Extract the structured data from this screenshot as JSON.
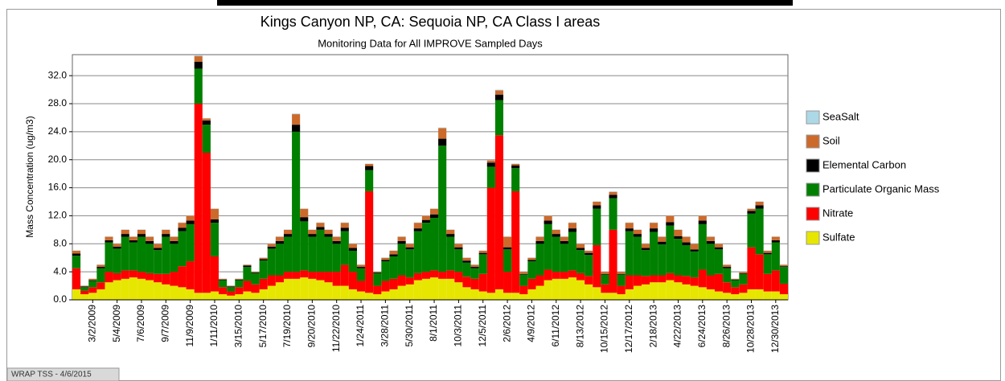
{
  "chart_data": {
    "type": "stacked_bar",
    "title": "Kings Canyon NP, CA: Sequoia NP, CA Class I areas",
    "subtitle": "Monitoring Data for All IMPROVE Sampled Days",
    "y_label": "Mass Concentration (ug/m3)",
    "footer": "WRAP TSS - 4/6/2015",
    "ylim": [
      0,
      35
    ],
    "yticks": [
      {
        "value": 0,
        "label": "0.0"
      },
      {
        "value": 4,
        "label": "4.0"
      },
      {
        "value": 8,
        "label": "8.0"
      },
      {
        "value": 12,
        "label": "12.0"
      },
      {
        "value": 16,
        "label": "16.0"
      },
      {
        "value": 20,
        "label": "20.0"
      },
      {
        "value": 24,
        "label": "24.0"
      },
      {
        "value": 28,
        "label": "28.0"
      },
      {
        "value": 32,
        "label": "32.0"
      }
    ],
    "grid": true,
    "categories": [
      null,
      null,
      "3/2/2009",
      null,
      null,
      "5/4/2009",
      null,
      null,
      "7/6/2009",
      null,
      null,
      "9/7/2009",
      null,
      null,
      "11/9/2009",
      null,
      null,
      "1/11/2010",
      null,
      null,
      "3/15/2010",
      null,
      null,
      "5/17/2010",
      null,
      null,
      "7/19/2010",
      null,
      null,
      "9/20/2010",
      null,
      null,
      "11/22/2010",
      null,
      null,
      "1/24/2011",
      null,
      null,
      "3/28/2011",
      null,
      null,
      "5/30/2011",
      null,
      null,
      "8/1/2011",
      null,
      null,
      "10/3/2011",
      null,
      null,
      "12/5/2011",
      null,
      null,
      "2/6/2012",
      null,
      null,
      "4/9/2012",
      null,
      null,
      "6/11/2012",
      null,
      null,
      "8/13/2012",
      null,
      null,
      "10/15/2012",
      null,
      null,
      "12/17/2012",
      null,
      null,
      "2/18/2013",
      null,
      null,
      "4/22/2013",
      null,
      null,
      "6/24/2013",
      null,
      null,
      "8/26/2013",
      null,
      null,
      "10/28/2013",
      null,
      null,
      "12/30/2013",
      null
    ],
    "series": [
      {
        "name": "Sulfate",
        "color": "#e6e600",
        "values": [
          1.5,
          0.8,
          1.0,
          1.5,
          2.5,
          2.8,
          3.0,
          3.2,
          3.0,
          2.8,
          2.5,
          2.2,
          2.0,
          1.8,
          1.5,
          1.0,
          1.0,
          1.2,
          0.8,
          0.6,
          0.8,
          1.2,
          1.0,
          1.5,
          2.0,
          2.5,
          3.0,
          3.0,
          3.2,
          3.0,
          2.8,
          2.5,
          2.0,
          2.0,
          1.5,
          1.2,
          1.0,
          0.8,
          1.2,
          1.5,
          2.0,
          2.2,
          2.8,
          3.0,
          3.2,
          3.0,
          3.0,
          2.5,
          1.8,
          1.5,
          1.2,
          1.0,
          1.5,
          1.0,
          1.0,
          0.8,
          1.5,
          2.0,
          2.8,
          3.0,
          3.0,
          3.2,
          2.8,
          2.2,
          1.8,
          1.0,
          1.0,
          0.8,
          1.5,
          2.0,
          2.2,
          2.5,
          2.5,
          2.8,
          2.5,
          2.2,
          2.0,
          1.8,
          1.5,
          1.2,
          1.0,
          0.8,
          1.0,
          1.5,
          1.5,
          1.2,
          1.2,
          0.8
        ]
      },
      {
        "name": "Nitrate",
        "color": "#ff0000",
        "values": [
          3.0,
          0.5,
          0.8,
          1.0,
          1.5,
          1.0,
          1.2,
          1.0,
          1.0,
          1.0,
          1.2,
          1.5,
          2.0,
          3.0,
          4.0,
          27.0,
          20.0,
          5.0,
          1.0,
          0.6,
          1.0,
          1.5,
          1.2,
          1.5,
          1.5,
          1.0,
          1.0,
          1.0,
          1.0,
          1.0,
          1.2,
          1.5,
          2.0,
          3.0,
          2.5,
          1.5,
          14.5,
          1.2,
          1.5,
          1.5,
          1.5,
          1.0,
          1.0,
          1.0,
          1.0,
          1.0,
          1.2,
          1.5,
          1.5,
          1.5,
          2.5,
          15.0,
          22.0,
          3.0,
          14.5,
          1.2,
          1.5,
          1.5,
          1.5,
          1.0,
          1.0,
          1.0,
          1.0,
          1.2,
          6.0,
          1.2,
          9.0,
          1.2,
          2.0,
          1.5,
          1.2,
          1.0,
          1.0,
          1.0,
          1.0,
          1.2,
          1.2,
          2.5,
          2.0,
          2.5,
          1.5,
          1.0,
          1.2,
          6.0,
          5.0,
          2.5,
          3.0,
          1.5
        ]
      },
      {
        "name": "Particulate Organic Mass",
        "color": "#008000",
        "values": [
          1.8,
          0.5,
          0.9,
          2.0,
          4.2,
          3.5,
          4.8,
          4.0,
          5.0,
          4.2,
          3.4,
          5.3,
          4.0,
          5.0,
          5.3,
          5.0,
          4.0,
          4.8,
          1.0,
          0.6,
          1.0,
          2.0,
          1.6,
          2.6,
          3.8,
          4.5,
          5.0,
          20.0,
          7.0,
          5.0,
          6.0,
          5.0,
          4.0,
          4.8,
          3.0,
          1.8,
          3.0,
          1.8,
          2.8,
          3.2,
          4.5,
          4.0,
          6.0,
          7.0,
          7.5,
          18.0,
          4.8,
          3.2,
          2.0,
          1.5,
          2.8,
          3.0,
          5.0,
          3.2,
          3.3,
          1.6,
          2.5,
          4.5,
          6.5,
          5.0,
          4.0,
          5.5,
          3.3,
          3.0,
          5.2,
          1.4,
          4.5,
          1.6,
          6.3,
          5.5,
          3.7,
          6.2,
          4.4,
          6.8,
          5.2,
          4.4,
          3.7,
          6.5,
          4.5,
          3.5,
          2.0,
          1.0,
          1.5,
          4.8,
          6.5,
          2.8,
          4.0,
          2.4
        ]
      },
      {
        "name": "Elemental Carbon",
        "color": "#000000",
        "values": [
          0.3,
          0.1,
          0.1,
          0.2,
          0.3,
          0.3,
          0.4,
          0.3,
          0.4,
          0.4,
          0.3,
          0.4,
          0.4,
          0.5,
          0.5,
          1.0,
          0.6,
          0.5,
          0.1,
          0.1,
          0.1,
          0.2,
          0.1,
          0.2,
          0.3,
          0.4,
          0.4,
          1.0,
          0.6,
          0.4,
          0.4,
          0.4,
          0.4,
          0.5,
          0.4,
          0.2,
          0.6,
          0.1,
          0.2,
          0.3,
          0.4,
          0.3,
          0.4,
          0.4,
          0.5,
          1.0,
          0.4,
          0.3,
          0.3,
          0.2,
          0.2,
          0.6,
          0.8,
          0.3,
          0.4,
          0.1,
          0.2,
          0.4,
          0.5,
          0.4,
          0.4,
          0.5,
          0.3,
          0.3,
          0.5,
          0.1,
          0.5,
          0.1,
          0.4,
          0.4,
          0.3,
          0.5,
          0.4,
          0.5,
          0.4,
          0.4,
          0.3,
          0.5,
          0.4,
          0.3,
          0.2,
          0.1,
          0.1,
          0.4,
          0.5,
          0.2,
          0.3,
          0.1
        ]
      },
      {
        "name": "Soil",
        "color": "#cc6a2c",
        "values": [
          0.4,
          0.1,
          0.2,
          0.3,
          0.5,
          0.4,
          0.6,
          0.5,
          0.6,
          0.6,
          0.6,
          0.6,
          0.6,
          0.7,
          0.7,
          0.8,
          0.3,
          1.5,
          0.1,
          0.1,
          0.1,
          0.1,
          0.1,
          0.2,
          0.4,
          0.6,
          0.6,
          1.5,
          1.2,
          0.6,
          0.6,
          0.6,
          0.6,
          0.7,
          0.6,
          0.3,
          0.3,
          0.1,
          0.3,
          0.5,
          0.6,
          0.5,
          0.8,
          0.6,
          0.8,
          1.5,
          0.6,
          0.5,
          0.4,
          0.3,
          0.3,
          0.3,
          0.6,
          1.5,
          0.2,
          0.3,
          0.3,
          0.6,
          0.7,
          0.6,
          0.6,
          0.8,
          0.6,
          0.3,
          0.5,
          0.3,
          0.4,
          0.3,
          0.8,
          0.6,
          0.6,
          0.8,
          0.7,
          0.9,
          0.9,
          0.8,
          0.8,
          0.7,
          0.6,
          0.5,
          0.3,
          0.1,
          0.2,
          0.3,
          0.5,
          0.3,
          0.5,
          0.2
        ]
      },
      {
        "name": "SeaSalt",
        "color": "#add8e6",
        "values": [
          0.05,
          0.05,
          0.05,
          0.05,
          0.05,
          0.05,
          0.05,
          0.05,
          0.05,
          0.05,
          0.05,
          0.05,
          0.05,
          0.05,
          0.05,
          0.1,
          0.05,
          0.05,
          0.05,
          0.05,
          0.05,
          0.05,
          0.05,
          0.05,
          0.05,
          0.05,
          0.05,
          0.1,
          0.05,
          0.05,
          0.05,
          0.05,
          0.05,
          0.05,
          0.05,
          0.05,
          0.05,
          0.05,
          0.05,
          0.05,
          0.05,
          0.05,
          0.05,
          0.05,
          0.05,
          0.1,
          0.05,
          0.05,
          0.05,
          0.05,
          0.05,
          0.05,
          0.1,
          0.05,
          0.05,
          0.05,
          0.05,
          0.05,
          0.05,
          0.05,
          0.05,
          0.05,
          0.05,
          0.05,
          0.05,
          0.05,
          0.1,
          0.05,
          0.05,
          0.05,
          0.05,
          0.05,
          0.05,
          0.05,
          0.05,
          0.05,
          0.05,
          0.05,
          0.05,
          0.05,
          0.05,
          0.05,
          0.05,
          0.05,
          0.05,
          0.05,
          0.05,
          0.05
        ]
      }
    ]
  }
}
